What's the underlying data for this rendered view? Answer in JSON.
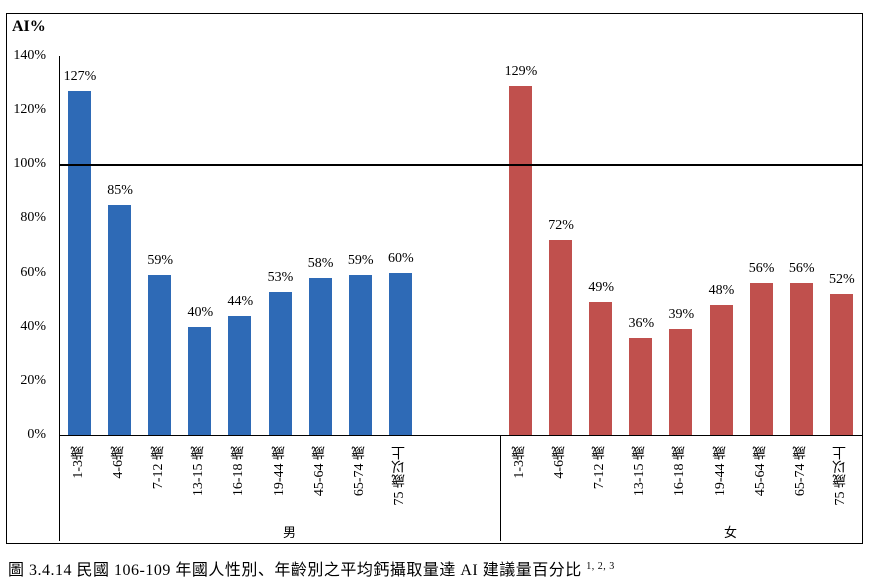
{
  "chart_data": {
    "type": "bar",
    "title": "",
    "ylabel": "AI%",
    "xlabel": "",
    "ylim": [
      0,
      140
    ],
    "yticks": [
      "0%",
      "20%",
      "40%",
      "60%",
      "80%",
      "100%",
      "120%",
      "140%"
    ],
    "reference_line": {
      "value": 100,
      "label": "100%"
    },
    "grid": false,
    "legend": null,
    "categories": [
      "1-3歲",
      "4-6歲",
      "7-12 歲",
      "13-15 歲",
      "16-18 歲",
      "19-44 歲",
      "45-64 歲",
      "65-74 歲",
      "75 歲以上"
    ],
    "series": [
      {
        "name": "男",
        "color": "#2E6AB6",
        "values": [
          127,
          85,
          59,
          40,
          44,
          53,
          58,
          59,
          60
        ],
        "labels": [
          "127%",
          "85%",
          "59%",
          "40%",
          "44%",
          "53%",
          "58%",
          "59%",
          "60%"
        ]
      },
      {
        "name": "女",
        "color": "#C0504D",
        "values": [
          129,
          72,
          49,
          36,
          39,
          48,
          56,
          56,
          52
        ],
        "labels": [
          "129%",
          "72%",
          "49%",
          "36%",
          "39%",
          "48%",
          "56%",
          "56%",
          "52%"
        ]
      }
    ]
  },
  "caption": {
    "text": "圖 3.4.14 民國 106-109 年國人性別、年齡別之平均鈣攝取量達 AI 建議量百分比",
    "superscript": "1, 2, 3"
  }
}
